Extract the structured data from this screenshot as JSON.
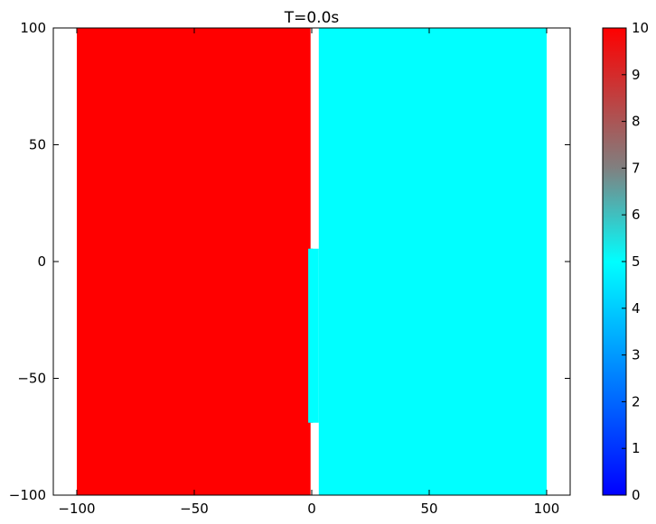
{
  "chart_data": {
    "type": "heatmap",
    "title": "T=0.0s",
    "xlabel": "",
    "ylabel": "",
    "xlim": [
      -110,
      110
    ],
    "ylim": [
      -100,
      100
    ],
    "xticks": [
      -100,
      -50,
      0,
      50,
      100
    ],
    "xtick_labels": [
      "−100",
      "−50",
      "0",
      "50",
      "100"
    ],
    "yticks": [
      -100,
      -50,
      0,
      50,
      100
    ],
    "ytick_labels": [
      "−100",
      "−50",
      "0",
      "50",
      "100"
    ],
    "regions": [
      {
        "name": "left-fill",
        "x": [
          -100,
          -0.5
        ],
        "y": [
          -100,
          100
        ],
        "value": 10
      },
      {
        "name": "left-step",
        "x": [
          -0.5,
          0.5
        ],
        "y": [
          -69,
          5.5
        ],
        "value": 10
      },
      {
        "name": "right-step",
        "x": [
          -1.5,
          3
        ],
        "y": [
          -69,
          5.5
        ],
        "value": 5
      },
      {
        "name": "right-fill",
        "x": [
          3,
          100
        ],
        "y": [
          -100,
          100
        ],
        "value": 5
      }
    ],
    "colorbar": {
      "min": 0,
      "max": 10,
      "ticks": [
        0,
        1,
        2,
        3,
        4,
        5,
        6,
        7,
        8,
        9,
        10
      ],
      "tick_labels": [
        "0",
        "1",
        "2",
        "3",
        "4",
        "5",
        "6",
        "7",
        "8",
        "9",
        "10"
      ],
      "colors": [
        {
          "value": 0,
          "color": "#0000ff"
        },
        {
          "value": 5,
          "color": "#00ffff"
        },
        {
          "value": 7,
          "color": "#808080"
        },
        {
          "value": 10,
          "color": "#ff0000"
        }
      ]
    },
    "grid": false,
    "legend": "none"
  }
}
